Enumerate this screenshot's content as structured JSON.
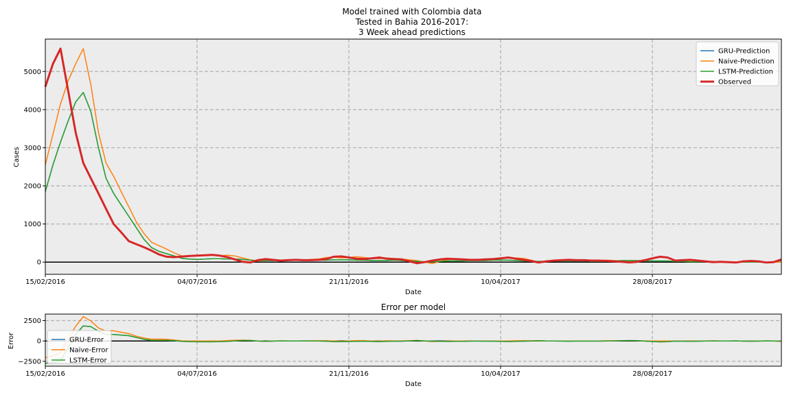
{
  "chart_data": [
    {
      "type": "line",
      "title": "Model trained with Colombia data\nTested in Bahia 2016-2017:\n3 Week ahead predictions",
      "xlabel": "Date",
      "ylabel": "Cases",
      "x_tick_labels": [
        "15/02/2016",
        "04/07/2016",
        "21/11/2016",
        "10/04/2017",
        "28/08/2017"
      ],
      "x_tick_weeks": [
        0,
        20,
        40,
        60,
        80
      ],
      "y_ticks": [
        0,
        1000,
        2000,
        3000,
        4000,
        5000
      ],
      "ylim": [
        -320,
        5850
      ],
      "xlim": [
        0,
        97
      ],
      "grid": true,
      "legend": "top-right",
      "series": [
        {
          "name": "GRU-Prediction",
          "color": "#1f77b4",
          "width": 1.5,
          "values": [
            1850,
            2550,
            3150,
            3700,
            4200,
            4450,
            3950,
            3000,
            2200,
            1800,
            1500,
            1200,
            900,
            600,
            380,
            280,
            220,
            160,
            100,
            80,
            70,
            80,
            90,
            90,
            80,
            80,
            70,
            50,
            40,
            40,
            40,
            50,
            50,
            50,
            60,
            50,
            50,
            50,
            60,
            60,
            60,
            50,
            50,
            40,
            40,
            40,
            50,
            40,
            30,
            20,
            10,
            10,
            20,
            30,
            30,
            30,
            40,
            40,
            40,
            50,
            50,
            50,
            40,
            30,
            20,
            20,
            20,
            30,
            30,
            30,
            30,
            30,
            20,
            20,
            20,
            30,
            40,
            40,
            40,
            30,
            30,
            30,
            30,
            20,
            20,
            10,
            10,
            10,
            0,
            0,
            0,
            0,
            0,
            0,
            0,
            0,
            0,
            40
          ]
        },
        {
          "name": "Naive-Prediction",
          "color": "#ff7f0e",
          "width": 1.5,
          "values": [
            2550,
            3350,
            4150,
            4750,
            5200,
            5600,
            4650,
            3400,
            2600,
            2250,
            1850,
            1450,
            1050,
            750,
            520,
            430,
            340,
            240,
            160,
            150,
            160,
            180,
            180,
            170,
            180,
            160,
            110,
            60,
            30,
            40,
            60,
            50,
            60,
            60,
            50,
            70,
            80,
            120,
            130,
            110,
            120,
            140,
            120,
            100,
            90,
            110,
            90,
            80,
            60,
            40,
            0,
            -40,
            20,
            60,
            80,
            70,
            70,
            60,
            70,
            80,
            90,
            110,
            110,
            100,
            50,
            0,
            20,
            30,
            40,
            50,
            50,
            50,
            40,
            40,
            50,
            40,
            30,
            20,
            30,
            60,
            100,
            130,
            120,
            40,
            40,
            40,
            30,
            20,
            20,
            10,
            0,
            0,
            0,
            0,
            0,
            0,
            0,
            0
          ]
        },
        {
          "name": "LSTM-Prediction",
          "color": "#2ca02c",
          "width": 1.5,
          "values": [
            1850,
            2550,
            3150,
            3700,
            4200,
            4450,
            3950,
            3000,
            2200,
            1800,
            1500,
            1200,
            900,
            600,
            380,
            280,
            220,
            160,
            100,
            80,
            70,
            80,
            90,
            90,
            80,
            80,
            70,
            50,
            40,
            40,
            40,
            50,
            50,
            50,
            60,
            50,
            50,
            50,
            60,
            60,
            60,
            50,
            50,
            40,
            40,
            40,
            50,
            40,
            30,
            20,
            10,
            10,
            20,
            30,
            30,
            30,
            40,
            40,
            40,
            50,
            50,
            50,
            40,
            30,
            20,
            20,
            20,
            30,
            30,
            30,
            30,
            30,
            20,
            20,
            20,
            30,
            40,
            40,
            40,
            30,
            30,
            30,
            30,
            20,
            20,
            10,
            10,
            10,
            0,
            0,
            0,
            0,
            0,
            0,
            0,
            0,
            0,
            40
          ]
        },
        {
          "name": "Observed",
          "color": "#d62728",
          "width": 3,
          "values": [
            4600,
            5200,
            5600,
            4500,
            3400,
            2600,
            2200,
            1800,
            1400,
            1000,
            780,
            550,
            470,
            390,
            300,
            200,
            140,
            130,
            145,
            160,
            170,
            180,
            190,
            170,
            130,
            70,
            10,
            -10,
            50,
            80,
            60,
            40,
            50,
            60,
            50,
            50,
            60,
            80,
            140,
            150,
            120,
            90,
            80,
            100,
            120,
            90,
            80,
            70,
            20,
            -30,
            0,
            40,
            70,
            90,
            80,
            70,
            60,
            60,
            70,
            80,
            100,
            120,
            90,
            60,
            30,
            -10,
            20,
            40,
            50,
            60,
            50,
            50,
            40,
            40,
            30,
            20,
            10,
            -10,
            10,
            50,
            100,
            140,
            120,
            40,
            50,
            60,
            40,
            20,
            0,
            10,
            0,
            -10,
            20,
            30,
            20,
            -10,
            0,
            70
          ]
        }
      ]
    },
    {
      "type": "line",
      "title": "Error per model",
      "xlabel": "Date",
      "ylabel": "Error",
      "x_tick_labels": [
        "15/02/2016",
        "04/07/2016",
        "21/11/2016",
        "10/04/2017",
        "28/08/2017"
      ],
      "x_tick_weeks": [
        0,
        20,
        40,
        60,
        80
      ],
      "y_ticks": [
        -2500,
        0,
        2500
      ],
      "y_tick_labels": [
        "−2500",
        "0",
        "2500"
      ],
      "ylim": [
        -3100,
        3300
      ],
      "xlim": [
        0,
        97
      ],
      "grid": true,
      "legend": "lower-left",
      "series": [
        {
          "name": "GRU-Error",
          "color": "#1f77b4",
          "width": 1.5,
          "values": [
            -2750,
            -2650,
            -2450,
            -800,
            800,
            1850,
            1750,
            1200,
            800,
            800,
            720,
            650,
            430,
            210,
            80,
            80,
            80,
            30,
            -45,
            -80,
            -100,
            -100,
            -100,
            -80,
            -50,
            10,
            60,
            60,
            -10,
            -40,
            -20,
            10,
            0,
            -10,
            10,
            0,
            -10,
            -30,
            -80,
            -90,
            -60,
            -40,
            -30,
            -60,
            -80,
            -50,
            -30,
            -30,
            10,
            50,
            10,
            -30,
            -50,
            -60,
            -50,
            -40,
            -20,
            -20,
            -30,
            -30,
            -50,
            -70,
            -50,
            -30,
            -10,
            30,
            0,
            -10,
            -20,
            -30,
            -20,
            -20,
            -20,
            -20,
            -10,
            10,
            30,
            50,
            30,
            -20,
            -70,
            -110,
            -90,
            -20,
            -30,
            -50,
            -30,
            -10,
            0,
            -10,
            0,
            10,
            -20,
            -30,
            -20,
            10,
            0,
            -30
          ]
        },
        {
          "name": "Naive-Error",
          "color": "#ff7f0e",
          "width": 1.5,
          "values": [
            -2050,
            -1850,
            -1450,
            250,
            1800,
            3000,
            2450,
            1600,
            1200,
            1250,
            1070,
            900,
            580,
            360,
            220,
            230,
            200,
            110,
            15,
            -10,
            -10,
            0,
            -10,
            0,
            50,
            90,
            100,
            70,
            -20,
            -40,
            0,
            10,
            10,
            0,
            0,
            20,
            20,
            40,
            -10,
            -40,
            0,
            50,
            40,
            0,
            -30,
            20,
            10,
            10,
            40,
            70,
            0,
            -80,
            -50,
            -30,
            0,
            0,
            10,
            0,
            0,
            0,
            -10,
            -10,
            20,
            40,
            20,
            10,
            0,
            -10,
            -10,
            -10,
            0,
            0,
            0,
            0,
            20,
            20,
            20,
            30,
            20,
            10,
            0,
            -10,
            0,
            0,
            -10,
            -20,
            -10,
            0,
            20,
            0,
            0,
            10,
            -20,
            -30,
            -20,
            10,
            0,
            -70
          ]
        },
        {
          "name": "LSTM-Error",
          "color": "#2ca02c",
          "width": 1.5,
          "values": [
            -2750,
            -2650,
            -2450,
            -800,
            800,
            1850,
            1750,
            1200,
            800,
            800,
            720,
            650,
            430,
            210,
            80,
            80,
            80,
            30,
            -45,
            -80,
            -100,
            -100,
            -100,
            -80,
            -50,
            10,
            60,
            60,
            -10,
            -40,
            -20,
            10,
            0,
            -10,
            10,
            0,
            -10,
            -30,
            -80,
            -90,
            -60,
            -40,
            -30,
            -60,
            -80,
            -50,
            -30,
            -30,
            10,
            50,
            10,
            -30,
            -50,
            -60,
            -50,
            -40,
            -20,
            -20,
            -30,
            -30,
            -50,
            -70,
            -50,
            -30,
            -10,
            30,
            0,
            -10,
            -20,
            -30,
            -20,
            -20,
            -20,
            -20,
            -10,
            10,
            30,
            50,
            30,
            -20,
            -70,
            -110,
            -90,
            -20,
            -30,
            -50,
            -30,
            -10,
            0,
            -10,
            0,
            10,
            -20,
            -30,
            -20,
            10,
            0,
            -30
          ]
        }
      ]
    }
  ]
}
